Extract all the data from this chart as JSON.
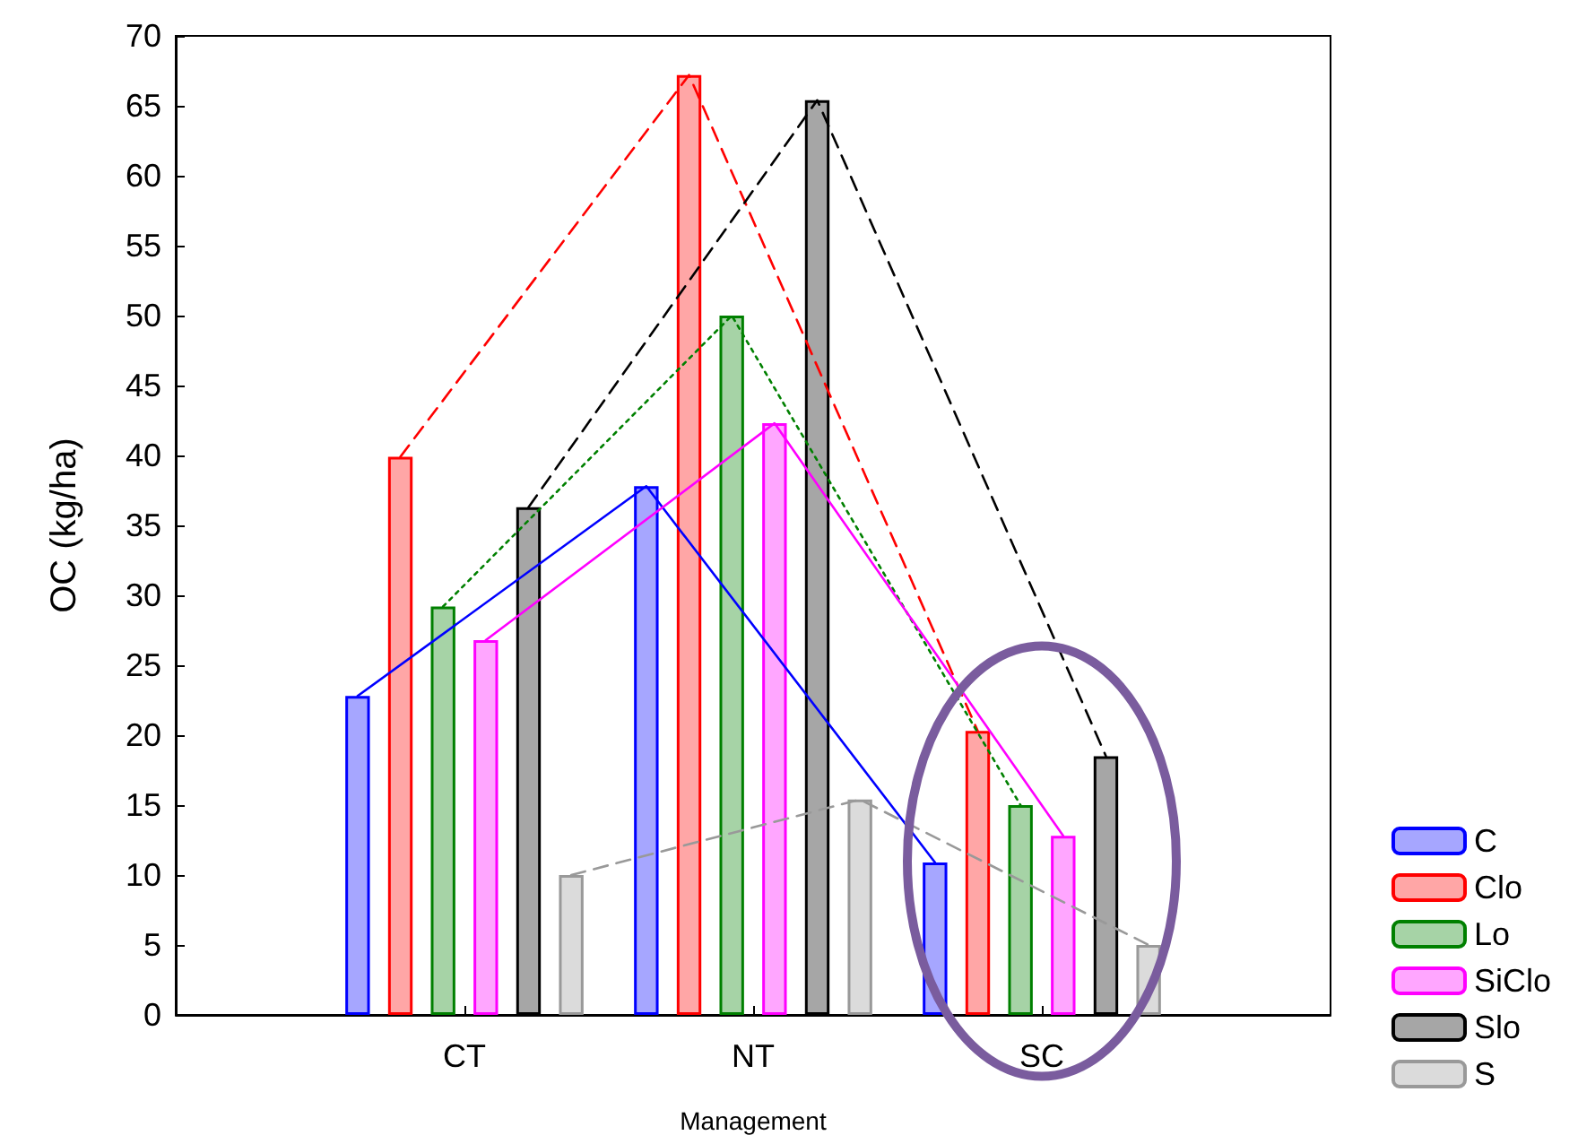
{
  "chart_data": {
    "type": "bar",
    "xlabel": "Management",
    "ylabel": "OC (kg/ha)",
    "categories": [
      "CT",
      "NT",
      "SC"
    ],
    "ylim": [
      0,
      70
    ],
    "yticks": [
      0,
      5,
      10,
      15,
      20,
      25,
      30,
      35,
      40,
      45,
      50,
      55,
      60,
      65,
      70
    ],
    "grid": false,
    "legend": "bottom right",
    "marker": "none",
    "series": [
      {
        "name": "C",
        "color": "#0000ff",
        "values": [
          22.8,
          37.8,
          10.9
        ]
      },
      {
        "name": "Clo",
        "color": "#ff0000",
        "values": [
          39.9,
          67.2,
          20.3
        ]
      },
      {
        "name": "Lo",
        "color": "#008000",
        "values": [
          29.2,
          50,
          15
        ]
      },
      {
        "name": "SiClo",
        "color": "#ff00ff",
        "values": [
          26.8,
          42.3,
          12.8
        ]
      },
      {
        "name": "Slo",
        "color": "#000000",
        "values": [
          36.3,
          65.4,
          18.5
        ]
      },
      {
        "name": "S",
        "color": "#999999",
        "values": [
          10,
          15.4,
          5
        ]
      },
      {
        "type": "line",
        "color": "#0000ff",
        "line_style": "solid",
        "values": [
          22.8,
          37.8,
          10.9
        ]
      },
      {
        "type": "line",
        "color": "#ff0000",
        "line_style": "dashed",
        "values": [
          39.9,
          67.2,
          20.3
        ]
      },
      {
        "type": "line",
        "color": "#008000",
        "line_style": "dotted",
        "values": [
          29.2,
          50,
          15
        ]
      },
      {
        "type": "line",
        "color": "#ff00ff",
        "line_style": "solid",
        "values": [
          26.8,
          42.3,
          12.8
        ]
      },
      {
        "type": "line",
        "color": "#000000",
        "line_style": "dashed",
        "values": [
          36.3,
          65.4,
          18.5
        ]
      },
      {
        "type": "line",
        "color": "#999999",
        "line_style": "dashed",
        "values": [
          10,
          15.4,
          5
        ]
      }
    ]
  }
}
